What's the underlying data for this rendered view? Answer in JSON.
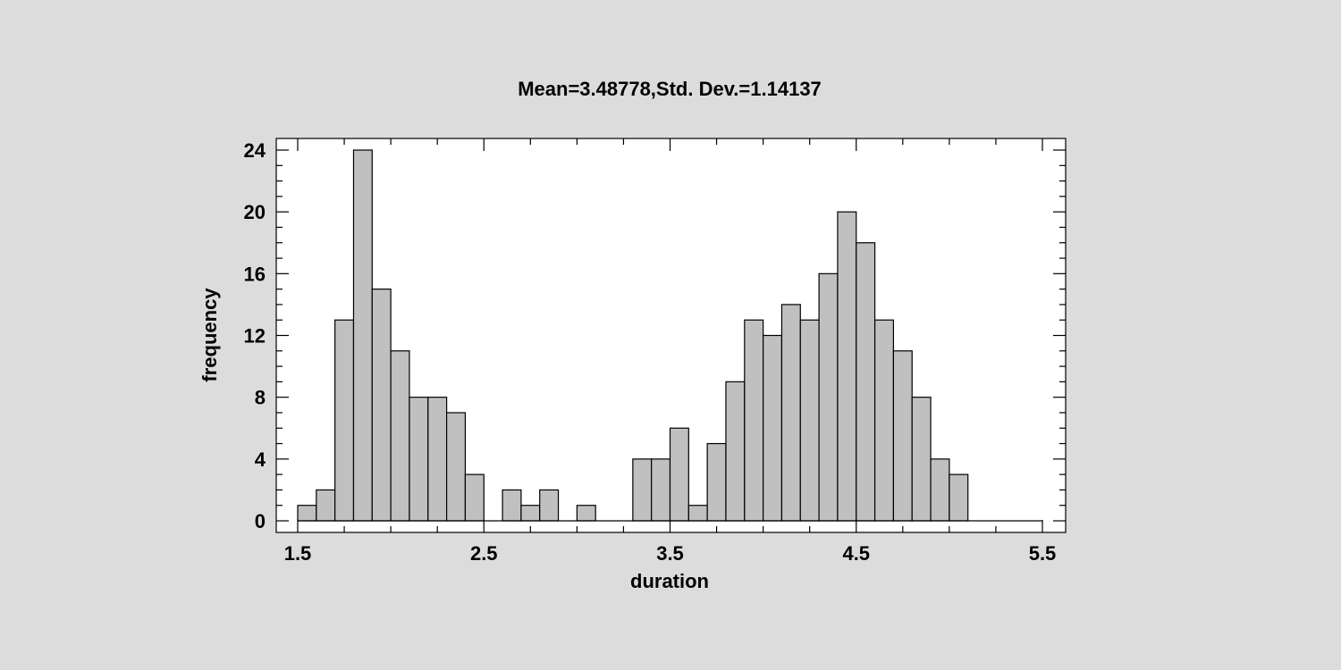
{
  "chart_data": {
    "type": "bar",
    "title": "Mean=3.48778,Std. Dev.=1.14137",
    "xlabel": "duration",
    "ylabel": "frequency",
    "xlim": [
      1.5,
      5.5
    ],
    "ylim": [
      0,
      24
    ],
    "bin_width": 0.1,
    "x_ticks": [
      "1.5",
      "2.5",
      "3.5",
      "4.5",
      "5.5"
    ],
    "y_ticks": [
      "0",
      "4",
      "8",
      "12",
      "16",
      "20",
      "24"
    ],
    "bins": [
      1.5,
      1.6,
      1.7,
      1.8,
      1.9,
      2.0,
      2.1,
      2.2,
      2.3,
      2.4,
      2.5,
      2.6,
      2.7,
      2.8,
      2.9,
      3.0,
      3.1,
      3.2,
      3.3,
      3.4,
      3.5,
      3.6,
      3.7,
      3.8,
      3.9,
      4.0,
      4.1,
      4.2,
      4.3,
      4.4,
      4.5,
      4.6,
      4.7,
      4.8,
      4.9,
      5.0,
      5.1,
      5.2,
      5.3,
      5.4
    ],
    "values": [
      1,
      2,
      13,
      24,
      15,
      11,
      8,
      8,
      7,
      3,
      0,
      2,
      1,
      2,
      0,
      1,
      0,
      0,
      4,
      4,
      6,
      1,
      5,
      9,
      13,
      12,
      14,
      13,
      16,
      20,
      18,
      13,
      11,
      8,
      4,
      3,
      0,
      0,
      0,
      0
    ],
    "grid": false,
    "legend": "none"
  }
}
